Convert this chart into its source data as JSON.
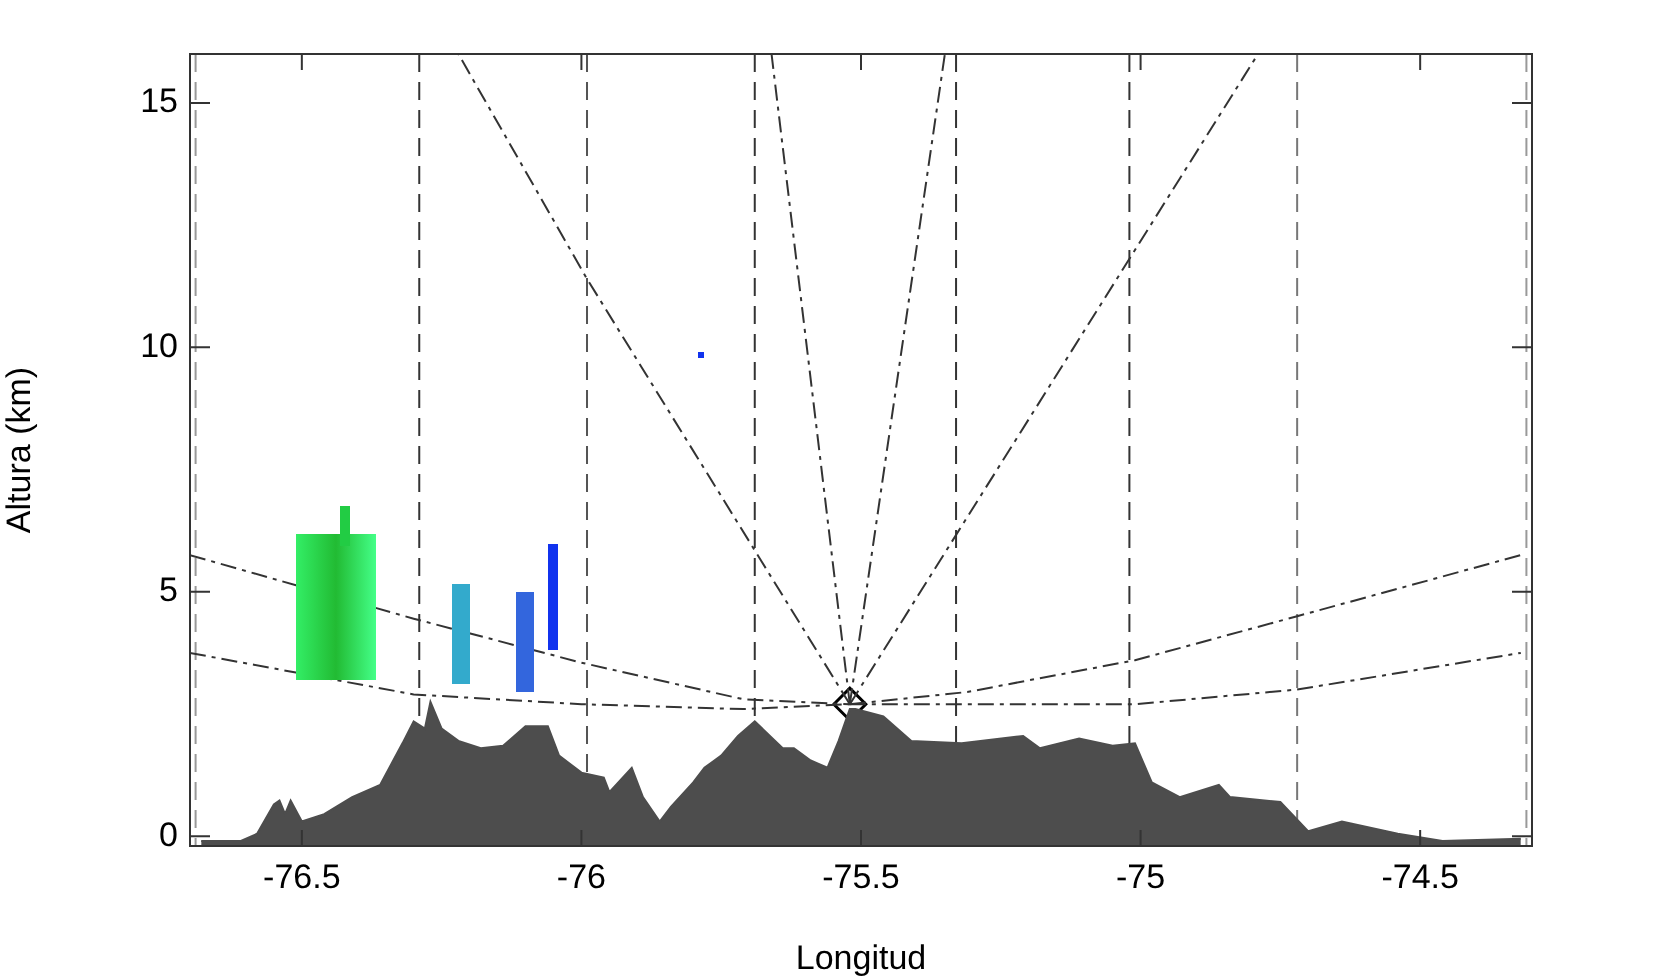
{
  "chart_data": {
    "type": "area",
    "xlabel": "Longitud",
    "ylabel": "Altura (km)",
    "xlim": [
      -76.7,
      -74.3
    ],
    "xticks": [
      -76.5,
      -76.0,
      -75.5,
      -75.0,
      -74.5
    ],
    "ylim": [
      -0.2,
      16
    ],
    "yticks": [
      0,
      5,
      10,
      15
    ],
    "grid": false,
    "legend": false,
    "series": [
      {
        "type": "area",
        "color": "#4d4d4d",
        "x": [
          -76.68,
          -76.61,
          -76.58,
          -76.55,
          -76.54,
          -76.53,
          -76.52,
          -76.5,
          -76.46,
          -76.41,
          -76.36,
          -76.32,
          -76.3,
          -76.28,
          -76.27,
          -76.25,
          -76.22,
          -76.18,
          -76.14,
          -76.1,
          -76.06,
          -76.04,
          -76.0,
          -75.96,
          -75.95,
          -75.91,
          -75.89,
          -75.86,
          -75.84,
          -75.8,
          -75.78,
          -75.75,
          -75.72,
          -75.69,
          -75.64,
          -75.62,
          -75.59,
          -75.56,
          -75.54,
          -75.52,
          -75.51,
          -75.46,
          -75.41,
          -75.32,
          -75.21,
          -75.18,
          -75.11,
          -75.05,
          -75.01,
          -74.98,
          -74.93,
          -74.86,
          -74.84,
          -74.75,
          -74.7,
          -74.64,
          -74.54,
          -74.46,
          -74.32
        ],
        "values": [
          -0.1,
          -0.1,
          0.05,
          0.65,
          0.73,
          0.45,
          0.73,
          0.3,
          0.45,
          0.8,
          1.05,
          1.9,
          2.35,
          2.2,
          2.75,
          2.2,
          1.95,
          1.8,
          1.85,
          2.25,
          2.25,
          1.65,
          1.3,
          1.2,
          0.9,
          1.4,
          0.8,
          0.3,
          0.6,
          1.1,
          1.4,
          1.65,
          2.05,
          2.35,
          1.8,
          1.8,
          1.55,
          1.4,
          1.95,
          2.6,
          2.6,
          2.45,
          1.95,
          1.9,
          2.05,
          1.8,
          2.0,
          1.85,
          1.9,
          1.1,
          0.8,
          1.05,
          0.8,
          0.7,
          0.1,
          0.3,
          0.05,
          -0.1,
          -0.05
        ]
      },
      {
        "type": "line",
        "color": "#333333",
        "line_style": "dashed",
        "x": [
          -76.7,
          -76.3,
          -76.0,
          -75.71,
          -75.52
        ],
        "values": [
          3.75,
          2.9,
          2.7,
          2.6,
          2.7
        ]
      },
      {
        "type": "line",
        "color": "#333333",
        "line_style": "dashed",
        "x": [
          -76.7,
          -76.3,
          -76.0,
          -75.71,
          -75.52
        ],
        "values": [
          5.75,
          4.45,
          3.55,
          2.8,
          2.7
        ]
      },
      {
        "type": "line",
        "color": "#333333",
        "line_style": "dashed",
        "x": [
          -75.52,
          -75.31,
          -75.01,
          -74.72,
          -74.32
        ],
        "values": [
          2.7,
          2.95,
          3.6,
          4.5,
          5.75
        ]
      },
      {
        "type": "line",
        "color": "#333333",
        "line_style": "dashed",
        "x": [
          -75.52,
          -75.01,
          -74.72,
          -74.32
        ],
        "values": [
          2.7,
          2.7,
          3.0,
          3.75
        ]
      },
      {
        "type": "line",
        "color": "#333333",
        "line_style": "dashed",
        "x": [
          -75.52,
          -75.99,
          -76.22
        ],
        "values": [
          2.7,
          11.4,
          16
        ]
      },
      {
        "type": "line",
        "color": "#333333",
        "line_style": "dashed",
        "x": [
          -75.52,
          -75.66
        ],
        "values": [
          2.7,
          16
        ]
      },
      {
        "type": "line",
        "color": "#333333",
        "line_style": "dashed",
        "x": [
          -75.52,
          -75.35
        ],
        "values": [
          2.7,
          16
        ]
      },
      {
        "type": "line",
        "color": "#333333",
        "line_style": "dashed",
        "x": [
          -75.52,
          -74.79
        ],
        "values": [
          2.7,
          16
        ]
      },
      {
        "type": "scatter",
        "color": "#000000",
        "marker": "diamond",
        "x": [
          -75.52
        ],
        "values": [
          2.7
        ]
      }
    ],
    "ref_lines": [
      {
        "axis": "x",
        "value": -76.69,
        "color": "#999999",
        "line_style": "dashed"
      },
      {
        "axis": "x",
        "value": -76.29,
        "color": "#333333",
        "line_style": "dashed"
      },
      {
        "axis": "x",
        "value": -75.99,
        "color": "#555555",
        "line_style": "dashed"
      },
      {
        "axis": "x",
        "value": -75.69,
        "color": "#333333",
        "line_style": "dashed"
      },
      {
        "axis": "x",
        "value": -75.33,
        "color": "#333333",
        "line_style": "dashed"
      },
      {
        "axis": "x",
        "value": -75.02,
        "color": "#333333",
        "line_style": "dashed"
      },
      {
        "axis": "x",
        "value": -74.72,
        "color": "#777777",
        "line_style": "dashed"
      },
      {
        "axis": "x",
        "value": -74.31,
        "color": "#999999",
        "line_style": "dashed"
      }
    ]
  }
}
